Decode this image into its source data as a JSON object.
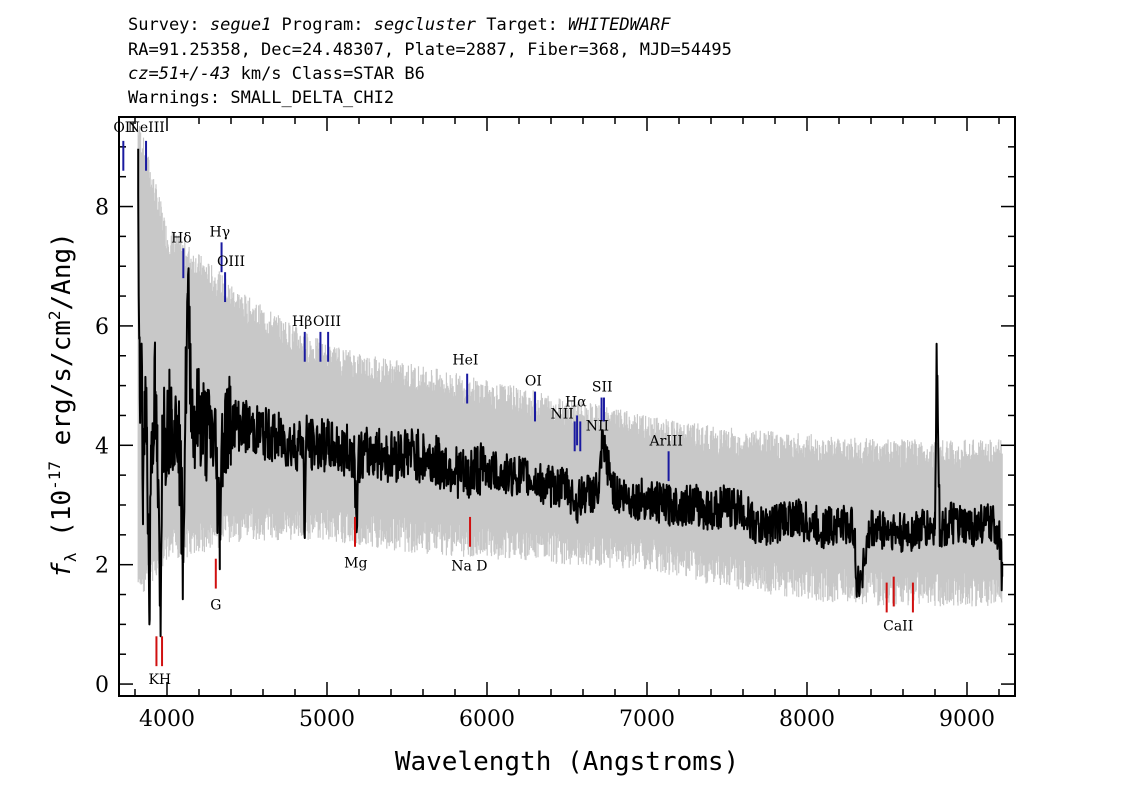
{
  "header": {
    "line1": [
      {
        "text": "Survey: ",
        "italic": false
      },
      {
        "text": "segue1",
        "italic": true
      },
      {
        "text": " Program: ",
        "italic": false
      },
      {
        "text": "segcluster",
        "italic": true
      },
      {
        "text": " Target: ",
        "italic": false
      },
      {
        "text": "WHITEDWARF",
        "italic": true
      }
    ],
    "line2": "RA=91.25358, Dec=24.48307, Plate=2887, Fiber=368, MJD=54495",
    "line3": [
      {
        "text": "cz=51+/-43",
        "italic": true
      },
      {
        "text": " km/s Class=STAR B6",
        "italic": false
      }
    ],
    "line4": "Warnings: SMALL_DELTA_CHI2"
  },
  "colors": {
    "spectrum": "#000000",
    "error_band": "#c8c8c8",
    "emission_marker": "#1a1aa0",
    "absorption_marker": "#d01010"
  },
  "chart_data": {
    "type": "line",
    "xlabel": "Wavelength (Angstroms)",
    "ylabel": "f_λ (10^-17 erg/s/cm^2/Ang)",
    "xlim": [
      3700,
      9300
    ],
    "ylim": [
      -0.2,
      9.5
    ],
    "xticks": [
      4000,
      5000,
      6000,
      7000,
      8000,
      9000
    ],
    "yticks": [
      0,
      2,
      4,
      6,
      8
    ],
    "xminor_step": 200,
    "yminor_step": 0.5,
    "grid": false,
    "legend": "none",
    "series": [
      {
        "style": "black-line",
        "x": [
          3820,
          3830,
          3840,
          3850,
          3860,
          3875,
          3890,
          3900,
          3910,
          3925,
          3940,
          3960,
          3970,
          3990,
          4010,
          4030,
          4050,
          4070,
          4100,
          4115,
          4130,
          4160,
          4200,
          4250,
          4300,
          4330,
          4340,
          4350,
          4400,
          4500,
          4600,
          4700,
          4800,
          4850,
          4861,
          4870,
          4900,
          5000,
          5100,
          5170,
          5183,
          5200,
          5300,
          5400,
          5500,
          5600,
          5700,
          5800,
          5890,
          5900,
          6000,
          6100,
          6200,
          6300,
          6400,
          6500,
          6563,
          6600,
          6700,
          6720,
          6800,
          6900,
          7000,
          7100,
          7200,
          7300,
          7400,
          7500,
          7600,
          7700,
          7800,
          7900,
          8000,
          8100,
          8200,
          8300,
          8310,
          8400,
          8500,
          8600,
          8700,
          8800,
          8810,
          8830,
          8850,
          8900,
          9000,
          9100,
          9200,
          9220
        ],
        "y": [
          8.2,
          4.8,
          5.5,
          3.2,
          4.9,
          4.3,
          1.0,
          4.0,
          4.3,
          4.9,
          3.7,
          0.8,
          4.5,
          4.2,
          4.4,
          4.6,
          4.2,
          4.5,
          2.2,
          4.6,
          6.5,
          4.4,
          4.5,
          4.2,
          4.1,
          2.6,
          3.9,
          4.2,
          4.4,
          4.3,
          4.2,
          4.1,
          4.0,
          4.1,
          2.5,
          4.1,
          4.0,
          4.0,
          3.9,
          3.9,
          2.8,
          3.8,
          3.9,
          3.8,
          3.9,
          3.8,
          3.7,
          3.6,
          3.4,
          3.6,
          3.6,
          3.5,
          3.5,
          3.4,
          3.3,
          3.3,
          3.0,
          3.2,
          3.2,
          4.0,
          3.2,
          3.1,
          3.1,
          3.0,
          3.0,
          3.0,
          2.9,
          3.0,
          2.9,
          2.6,
          2.7,
          2.8,
          2.7,
          2.6,
          2.7,
          2.6,
          1.5,
          2.6,
          2.6,
          2.5,
          2.6,
          2.6,
          5.7,
          2.6,
          2.6,
          2.7,
          2.6,
          2.7,
          2.6,
          1.8
        ]
      },
      {
        "style": "grey-band",
        "x": [
          3820,
          4000,
          4500,
          5000,
          5500,
          6000,
          6500,
          7000,
          7500,
          8000,
          8500,
          9000,
          9220
        ],
        "y_low": [
          2.0,
          2.6,
          3.0,
          3.0,
          2.8,
          2.7,
          2.6,
          2.5,
          2.2,
          2.0,
          1.9,
          1.9,
          1.9
        ],
        "y_high": [
          9.0,
          7.2,
          6.0,
          5.2,
          4.9,
          4.6,
          4.3,
          4.0,
          3.8,
          3.7,
          3.6,
          3.6,
          3.6
        ]
      }
    ],
    "annotations": [
      {
        "label": "OII",
        "wave": 3727,
        "y1": 8.6,
        "y2": 9.1,
        "type": "emission"
      },
      {
        "label": "NeIII",
        "wave": 3869,
        "y1": 8.6,
        "y2": 9.1,
        "type": "emission"
      },
      {
        "label": "Hδ",
        "wave": 4102,
        "y1": 6.8,
        "y2": 7.3,
        "type": "emission"
      },
      {
        "label": "Hγ",
        "wave": 4341,
        "y1": 6.9,
        "y2": 7.4,
        "type": "emission"
      },
      {
        "label": "OIII",
        "wave": 4363,
        "y1": 6.4,
        "y2": 6.9,
        "type": "emission"
      },
      {
        "label": "Hβ",
        "wave": 4861,
        "y1": 5.4,
        "y2": 5.9,
        "type": "emission"
      },
      {
        "label": "OIII",
        "wave": 4959,
        "y1": 5.4,
        "y2": 5.9,
        "type": "emission"
      },
      {
        "label": "OIII",
        "wave": 5007,
        "y1": 5.4,
        "y2": 5.9,
        "type": "emission"
      },
      {
        "label": "HeI",
        "wave": 5876,
        "y1": 4.7,
        "y2": 5.2,
        "type": "emission"
      },
      {
        "label": "OI",
        "wave": 6300,
        "y1": 4.4,
        "y2": 4.9,
        "type": "emission"
      },
      {
        "label": "NII",
        "wave": 6548,
        "y1": 3.9,
        "y2": 4.4,
        "type": "emission"
      },
      {
        "label": "Hα",
        "wave": 6563,
        "y1": 4.0,
        "y2": 4.5,
        "type": "emission"
      },
      {
        "label": "NII",
        "wave": 6583,
        "y1": 3.9,
        "y2": 4.4,
        "type": "emission"
      },
      {
        "label": "SII",
        "wave": 6716,
        "y1": 4.4,
        "y2": 4.8,
        "type": "emission"
      },
      {
        "label": "SII",
        "wave": 6731,
        "y1": 4.4,
        "y2": 4.8,
        "type": "emission"
      },
      {
        "label": "ArIII",
        "wave": 7135,
        "y1": 3.4,
        "y2": 3.9,
        "type": "emission"
      },
      {
        "label": "K",
        "wave": 3934,
        "y1": 0.3,
        "y2": 0.8,
        "type": "absorption"
      },
      {
        "label": "H",
        "wave": 3969,
        "y1": 0.3,
        "y2": 0.8,
        "type": "absorption"
      },
      {
        "label": "G",
        "wave": 4305,
        "y1": 1.6,
        "y2": 2.1,
        "type": "absorption"
      },
      {
        "label": "Mg",
        "wave": 5175,
        "y1": 2.3,
        "y2": 2.8,
        "type": "absorption"
      },
      {
        "label": "Na D",
        "wave": 5894,
        "y1": 2.3,
        "y2": 2.8,
        "type": "absorption"
      },
      {
        "label": "CaII",
        "wave": 8498,
        "y1": 1.2,
        "y2": 1.7,
        "type": "absorption"
      },
      {
        "label": "CaII",
        "wave": 8542,
        "y1": 1.3,
        "y2": 1.8,
        "type": "absorption"
      },
      {
        "label": "CaII",
        "wave": 8662,
        "y1": 1.2,
        "y2": 1.7,
        "type": "absorption"
      }
    ],
    "annotation_labels": [
      {
        "text": "OII",
        "wave": 3735,
        "y": 9.25
      },
      {
        "text": "NeIII",
        "wave": 3870,
        "y": 9.25
      },
      {
        "text": "Hδ",
        "wave": 4090,
        "y": 7.4
      },
      {
        "text": "Hγ",
        "wave": 4330,
        "y": 7.5
      },
      {
        "text": "OIII",
        "wave": 4400,
        "y": 7.0
      },
      {
        "text": "Hβ",
        "wave": 4845,
        "y": 6.0
      },
      {
        "text": "OIII",
        "wave": 5000,
        "y": 6.0
      },
      {
        "text": "HeI",
        "wave": 5865,
        "y": 5.35
      },
      {
        "text": "OI",
        "wave": 6290,
        "y": 5.0
      },
      {
        "text": "Hα",
        "wave": 6555,
        "y": 4.65
      },
      {
        "text": "NII",
        "wave": 6470,
        "y": 4.45
      },
      {
        "text": "SII",
        "wave": 6720,
        "y": 4.9
      },
      {
        "text": "NII",
        "wave": 6690,
        "y": 4.25
      },
      {
        "text": "ArIII",
        "wave": 7120,
        "y": 4.0
      },
      {
        "text": "KH",
        "wave": 3955,
        "y": 0.0
      },
      {
        "text": "G",
        "wave": 4305,
        "y": 1.25
      },
      {
        "text": "Mg",
        "wave": 5180,
        "y": 1.95
      },
      {
        "text": "Na D",
        "wave": 5890,
        "y": 1.9
      },
      {
        "text": "CaII",
        "wave": 8570,
        "y": 0.9
      }
    ]
  }
}
